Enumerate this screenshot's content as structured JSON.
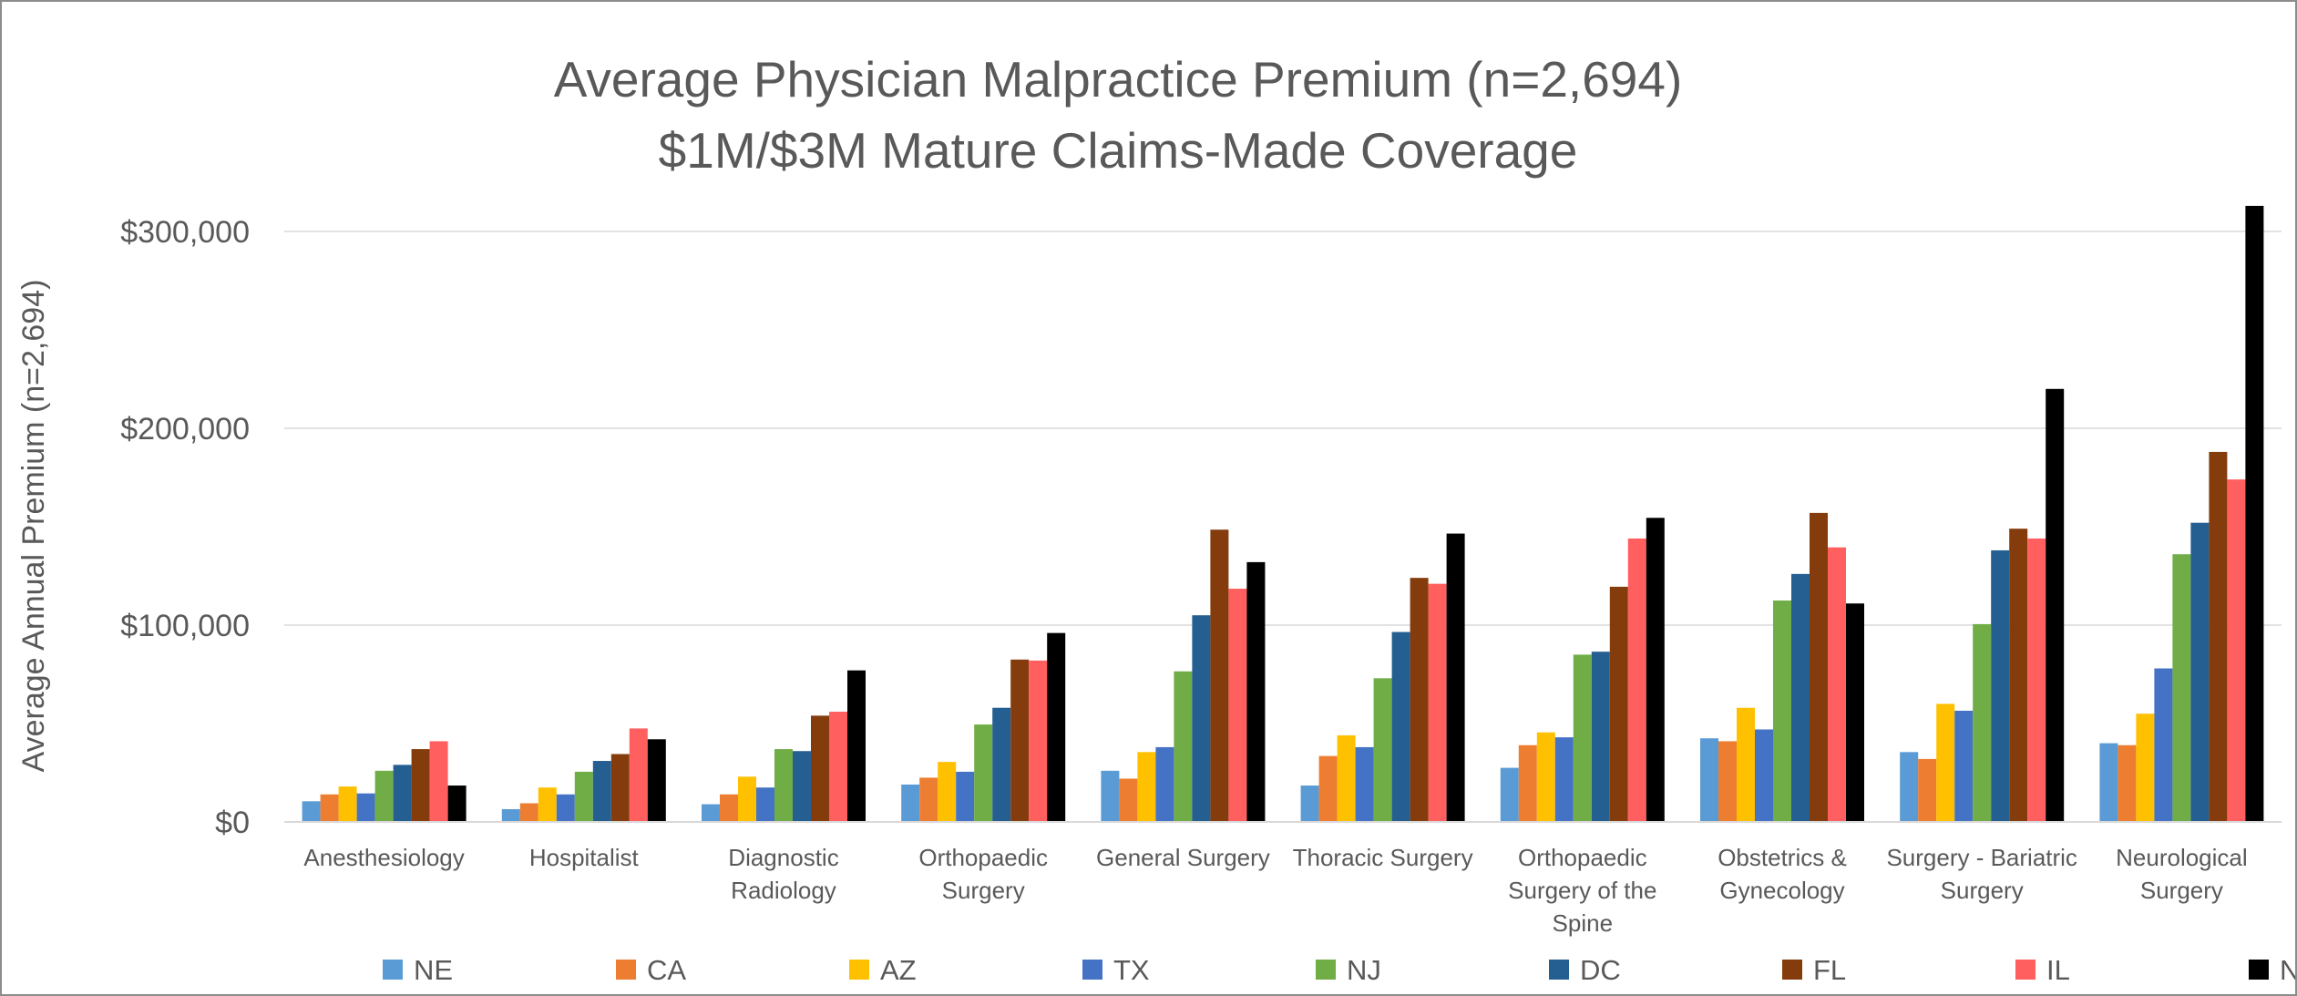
{
  "chart_data": {
    "type": "bar",
    "title": "Average Physician Malpractice Premium (n=2,694)",
    "subtitle": "$1M/$3M Mature Claims-Made Coverage",
    "xlabel": "",
    "ylabel": "Average Annual Premium (n=2,694)",
    "ylim": [
      0,
      300000
    ],
    "yticks": [
      {
        "value": 0,
        "label": "$0"
      },
      {
        "value": 100000,
        "label": "$100,000"
      },
      {
        "value": 200000,
        "label": "$200,000"
      },
      {
        "value": 300000,
        "label": "$300,000"
      }
    ],
    "grid": true,
    "legend_position": "bottom",
    "categories": [
      "Anesthesiology",
      "Hospitalist",
      "Diagnostic Radiology",
      "Orthopaedic Surgery",
      "General Surgery",
      "Thoracic Surgery",
      "Orthopaedic Surgery of the Spine",
      "Obstetrics & Gynecology",
      "Surgery - Bariatric Surgery",
      "Neurological Surgery"
    ],
    "category_lines": [
      [
        "Anesthesiology"
      ],
      [
        "Hospitalist"
      ],
      [
        "Diagnostic",
        "Radiology"
      ],
      [
        "Orthopaedic",
        "Surgery"
      ],
      [
        "General Surgery"
      ],
      [
        "Thoracic Surgery"
      ],
      [
        "Orthopaedic",
        "Surgery of the",
        "Spine"
      ],
      [
        "Obstetrics &",
        "Gynecology"
      ],
      [
        "Surgery - Bariatric",
        "Surgery"
      ],
      [
        "Neurological",
        "Surgery"
      ]
    ],
    "series": [
      {
        "name": "NE",
        "color": "#5b9bd5",
        "values": [
          10500,
          6500,
          9000,
          19000,
          26000,
          18500,
          27500,
          42500,
          35500,
          40000
        ]
      },
      {
        "name": "CA",
        "color": "#ed7d31",
        "values": [
          14000,
          9500,
          14000,
          22500,
          22000,
          33500,
          39000,
          41000,
          32000,
          39000
        ]
      },
      {
        "name": "AZ",
        "color": "#ffc000",
        "values": [
          18000,
          17500,
          23000,
          30500,
          35500,
          44000,
          45500,
          58000,
          60000,
          55000
        ]
      },
      {
        "name": "TX",
        "color": "#4472c4",
        "values": [
          14500,
          14000,
          17500,
          25500,
          38000,
          38000,
          43000,
          47000,
          56500,
          78000
        ]
      },
      {
        "name": "NJ",
        "color": "#70ad47",
        "values": [
          26000,
          25500,
          37000,
          49500,
          76500,
          73000,
          85000,
          112500,
          100500,
          136000
        ]
      },
      {
        "name": "DC",
        "color": "#255e91",
        "values": [
          29000,
          31000,
          36000,
          58000,
          105000,
          96500,
          86500,
          126000,
          138000,
          152000
        ]
      },
      {
        "name": "FL",
        "color": "#843c0c",
        "values": [
          37000,
          34500,
          54000,
          82500,
          148500,
          124000,
          119500,
          157000,
          149000,
          188000
        ]
      },
      {
        "name": "IL",
        "color": "#ff5f5f",
        "values": [
          41000,
          47500,
          56000,
          82000,
          118500,
          121000,
          144000,
          139500,
          144000,
          174000
        ]
      },
      {
        "name": "NY",
        "color": "#000000",
        "values": [
          18500,
          42000,
          77000,
          96000,
          132000,
          146500,
          154500,
          111000,
          220000,
          313000
        ]
      }
    ]
  }
}
